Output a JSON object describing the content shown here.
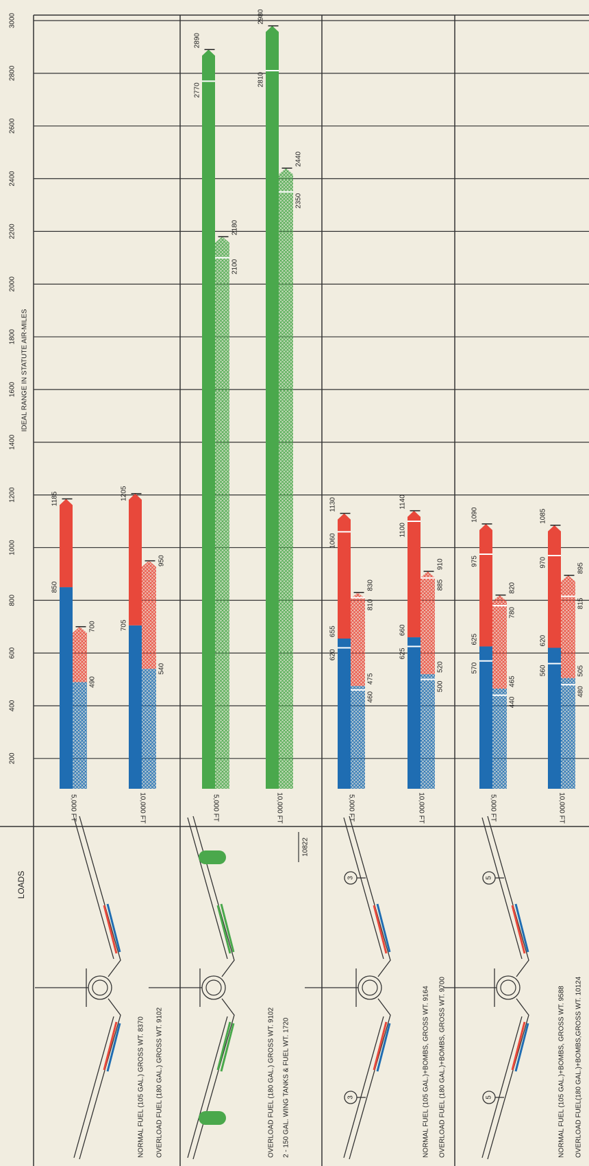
{
  "chart_data": {
    "type": "range-bar",
    "title": "IDEAL RANGE IN STATUTE AIR-MILES",
    "loads_title": "LOADS",
    "ylim": [
      85,
      3000
    ],
    "yticks": [
      200,
      400,
      600,
      800,
      1000,
      1200,
      1400,
      1600,
      1800,
      2000,
      2200,
      2400,
      2600,
      2800,
      3000
    ],
    "grid": true,
    "groups": [
      {
        "loads": [
          "NORMAL FUEL (105 GAL.) GROSS WT. 8370",
          "OVERLOAD FUEL (180 GAL.) GROSS WT. 9102"
        ],
        "bars": [
          {
            "altitude": "5,000 FT",
            "solid": [
              {
                "color": "#1f6db2",
                "values": [
                  850
                ]
              },
              {
                "color": "#e8483b",
                "values": [
                  1185
                ]
              }
            ],
            "hatched": [
              {
                "color": "#1f6db2",
                "values": [
                  490
                ]
              },
              {
                "color": "#e8483b",
                "values": [
                  700
                ]
              }
            ]
          },
          {
            "altitude": "10,000 FT",
            "solid": [
              {
                "color": "#1f6db2",
                "values": [
                  705
                ]
              },
              {
                "color": "#e8483b",
                "values": [
                  1205
                ]
              }
            ],
            "hatched": [
              {
                "color": "#1f6db2",
                "values": [
                  540
                ]
              },
              {
                "color": "#e8483b",
                "values": [
                  950
                ]
              }
            ]
          }
        ]
      },
      {
        "loads": [
          "OVERLOAD FUEL (180 GAL.) GROSS WT. 9102",
          "2 - 150 GAL. WING TANKS & FUEL WT. 1720"
        ],
        "total": "10822",
        "bars": [
          {
            "altitude": "5,000 FT",
            "solid": [
              {
                "color": "#4aa84c",
                "values": [
                  2770,
                  2890
                ]
              }
            ],
            "hatched": [
              {
                "color": "#4aa84c",
                "values": [
                  2100,
                  2180
                ]
              }
            ]
          },
          {
            "altitude": "10,000 FT",
            "solid": [
              {
                "color": "#4aa84c",
                "values": [
                  2810,
                  2980
                ]
              }
            ],
            "hatched": [
              {
                "color": "#4aa84c",
                "values": [
                  2350,
                  2440
                ]
              }
            ]
          }
        ]
      },
      {
        "loads": [
          "NORMAL FUEL (105 GAL.)+BOMBS, GROSS WT. 9164",
          "OVERLOAD FUEL (180 GAL.)+BOMBS, GROSS WT. 9700"
        ],
        "bomb_label": "3",
        "bars": [
          {
            "altitude": "5,000 FT",
            "solid": [
              {
                "color": "#1f6db2",
                "values": [
                  620,
                  655
                ]
              },
              {
                "color": "#e8483b",
                "values": [
                  1060,
                  1130
                ]
              }
            ],
            "hatched": [
              {
                "color": "#1f6db2",
                "values": [
                  460,
                  475
                ]
              },
              {
                "color": "#e8483b",
                "values": [
                  810,
                  830
                ]
              }
            ]
          },
          {
            "altitude": "10,000 FT",
            "solid": [
              {
                "color": "#1f6db2",
                "values": [
                  625,
                  660
                ]
              },
              {
                "color": "#e8483b",
                "values": [
                  1100,
                  1140
                ]
              }
            ],
            "hatched": [
              {
                "color": "#1f6db2",
                "values": [
                  500,
                  520
                ]
              },
              {
                "color": "#e8483b",
                "values": [
                  885,
                  910
                ]
              }
            ]
          }
        ]
      },
      {
        "loads": [
          "NORMAL FUEL (105 GAL.)+BOMBS, GROSS WT. 9588",
          "OVERLOAD FUEL(180 GAL.)+BOMBS,GROSS WT. 10124"
        ],
        "bomb_label": "5",
        "bars": [
          {
            "altitude": "5,000 FT",
            "solid": [
              {
                "color": "#1f6db2",
                "values": [
                  570,
                  625
                ]
              },
              {
                "color": "#e8483b",
                "values": [
                  975,
                  1090
                ]
              }
            ],
            "hatched": [
              {
                "color": "#1f6db2",
                "values": [
                  440,
                  465
                ]
              },
              {
                "color": "#e8483b",
                "values": [
                  780,
                  820
                ]
              }
            ]
          },
          {
            "altitude": "10,000 FT",
            "solid": [
              {
                "color": "#1f6db2",
                "values": [
                  560,
                  620
                ]
              },
              {
                "color": "#e8483b",
                "values": [
                  970,
                  1085
                ]
              }
            ],
            "hatched": [
              {
                "color": "#1f6db2",
                "values": [
                  480,
                  505
                ]
              },
              {
                "color": "#e8483b",
                "values": [
                  815,
                  895
                ]
              }
            ]
          }
        ]
      }
    ]
  }
}
